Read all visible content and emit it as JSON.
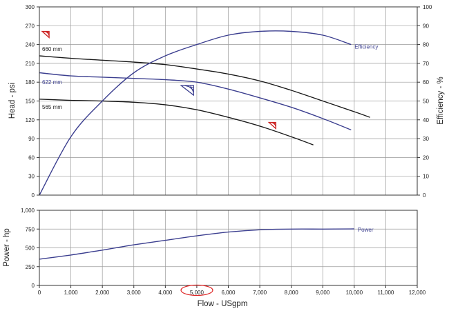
{
  "chart_data": [
    {
      "type": "line",
      "x_ticks": [
        "0",
        "1,000",
        "2,000",
        "3,000",
        "4,000",
        "5,000",
        "6,000",
        "7,000",
        "8,000",
        "9,000",
        "10,000",
        "11,000",
        "12,000"
      ],
      "y_ticks": [
        "0",
        "30",
        "60",
        "90",
        "120",
        "150",
        "180",
        "210",
        "240",
        "270",
        "300"
      ],
      "y2_ticks": [
        "0",
        "10",
        "20",
        "30",
        "40",
        "50",
        "60",
        "70",
        "80",
        "90",
        "100"
      ],
      "xlim": [
        0,
        12000
      ],
      "ylim": [
        0,
        300
      ],
      "y2lim": [
        0,
        100
      ],
      "ylabel": "Head - psi",
      "y2label": "Efficiency - %",
      "grid": true,
      "series": [
        {
          "name": "660 mm",
          "color": "#1a1a1a",
          "x": [
            0,
            1000,
            2000,
            3000,
            4000,
            5000,
            6000,
            7000,
            8000,
            9000,
            10000,
            10500
          ],
          "y": [
            222,
            218,
            215,
            212,
            208,
            201,
            193,
            182,
            167,
            150,
            133,
            124
          ]
        },
        {
          "name": "622 mm",
          "color": "#3b3e8f",
          "x": [
            0,
            1000,
            2000,
            3000,
            4000,
            5000,
            6000,
            7000,
            8000,
            9000,
            9900
          ],
          "y": [
            195,
            190,
            188,
            186,
            184,
            180,
            169,
            155,
            140,
            122,
            104
          ]
        },
        {
          "name": "565 mm",
          "color": "#1a1a1a",
          "x": [
            0,
            1000,
            2000,
            3000,
            4000,
            5000,
            6000,
            7000,
            8000,
            8700
          ],
          "y": [
            153,
            151,
            150,
            148,
            144,
            136,
            124,
            110,
            93,
            80
          ]
        },
        {
          "name": "Efficiency",
          "color": "#3b3e8f",
          "axis": "right",
          "x": [
            0,
            1000,
            2000,
            3000,
            4000,
            5000,
            6000,
            7000,
            8000,
            9000,
            9900
          ],
          "y": [
            0,
            31,
            50,
            65,
            74,
            80,
            85,
            87,
            87,
            85,
            80
          ]
        }
      ],
      "markers": [
        {
          "color": "#cc2222",
          "x": 200,
          "y": 256
        },
        {
          "color": "#3b3e8f",
          "x": 4700,
          "y": 167
        },
        {
          "color": "#cc2222",
          "x": 7400,
          "y": 111
        }
      ]
    },
    {
      "type": "line",
      "x_ticks": [
        "0",
        "1,000",
        "2,000",
        "3,000",
        "4,000",
        "5,000",
        "6,000",
        "7,000",
        "8,000",
        "9,000",
        "10,000",
        "11,000",
        "12,000"
      ],
      "y_ticks": [
        "0",
        "250",
        "500",
        "750",
        "1,000"
      ],
      "xlim": [
        0,
        12000
      ],
      "ylim": [
        0,
        1000
      ],
      "xlabel": "Flow - USgpm",
      "ylabel": "Power - hp",
      "grid": true,
      "highlight_tick": "5,000",
      "highlight_color": "#dd2222",
      "series": [
        {
          "name": "Power",
          "color": "#3b3e8f",
          "x": [
            0,
            1000,
            2000,
            3000,
            4000,
            5000,
            6000,
            7000,
            8000,
            9000,
            10000
          ],
          "y": [
            350,
            405,
            470,
            540,
            600,
            660,
            710,
            740,
            750,
            750,
            752
          ]
        }
      ]
    }
  ]
}
